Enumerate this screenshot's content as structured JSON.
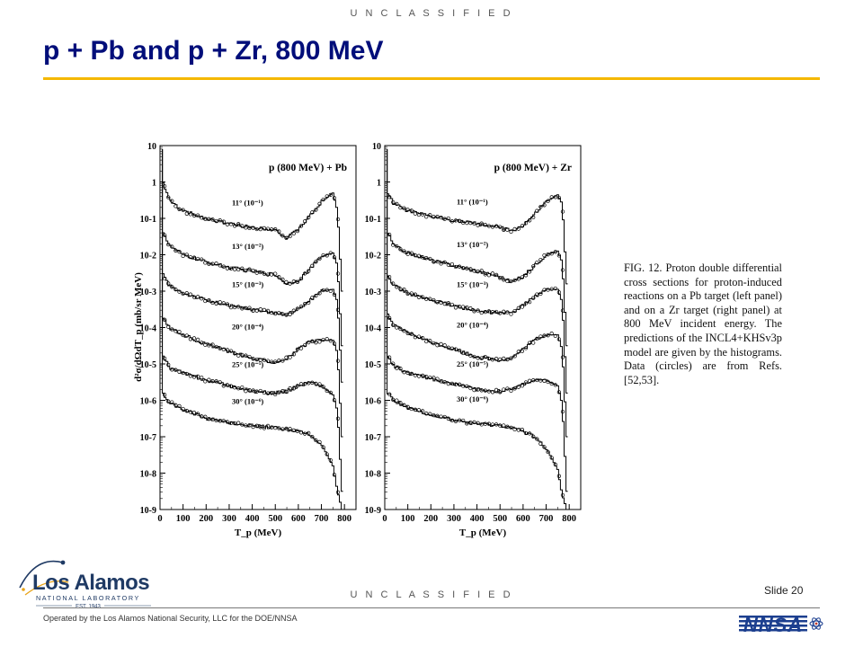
{
  "banner": "U N C L A S S I F I E D",
  "title": "p + Pb and p + Zr, 800 MeV",
  "caption": "FIG. 12. Proton double differential cross sections for proton-induced reactions on a Pb target (left panel) and on a Zr target (right panel) at 800 MeV incident energy. The predictions of the INCL4+KHSv3p model are given by the histograms. Data (circles) are from Refs. [52,53].",
  "slide": "Slide 20",
  "operated_by": "Operated by the Los Alamos National Security, LLC for the DOE/NNSA",
  "logo": {
    "name": "Los Alamos",
    "sub": "NATIONAL LABORATORY",
    "est": "EST. 1943"
  },
  "nnsa_logo": "NNSA",
  "colors": {
    "title": "#000e7a",
    "rule": "#f5b800",
    "logo": "#1f3a64"
  },
  "chart_data": [
    {
      "type": "line",
      "title": "p (800 MeV) + Pb",
      "xlabel": "T_p (MeV)",
      "ylabel": "d²σ/dΩdT_p (mb/sr MeV)",
      "xlim": [
        0,
        850
      ],
      "ylim_log10": [
        -9,
        1
      ],
      "x_ticks": [
        "0",
        "100",
        "200",
        "300",
        "400",
        "500",
        "600",
        "700",
        "800"
      ],
      "y_ticks": [
        "10",
        "1",
        "10-1",
        "10-2",
        "10-3",
        "10-4",
        "10-5",
        "10-6",
        "10-7",
        "10-8",
        "10-9"
      ],
      "series": [
        {
          "name": "11° (10⁻¹)",
          "x": [
            10,
            40,
            100,
            200,
            300,
            400,
            500,
            550,
            600,
            650,
            700,
            750,
            770,
            790
          ],
          "log_y": [
            0.05,
            -0.5,
            -0.8,
            -1.0,
            -1.15,
            -1.25,
            -1.3,
            -1.55,
            -1.3,
            -0.95,
            -0.55,
            -0.3,
            -0.8,
            -3.0
          ]
        },
        {
          "name": "13° (10⁻²)",
          "x": [
            10,
            40,
            100,
            200,
            300,
            400,
            500,
            550,
            600,
            650,
            700,
            750,
            770,
            790
          ],
          "log_y": [
            -1.3,
            -1.75,
            -2.0,
            -2.2,
            -2.35,
            -2.45,
            -2.55,
            -2.8,
            -2.7,
            -2.4,
            -2.05,
            -1.95,
            -2.3,
            -4.5
          ]
        },
        {
          "name": "15° (10⁻³)",
          "x": [
            10,
            40,
            100,
            200,
            300,
            400,
            500,
            550,
            600,
            650,
            700,
            750,
            770,
            790
          ],
          "log_y": [
            -2.5,
            -2.85,
            -3.05,
            -3.25,
            -3.4,
            -3.5,
            -3.6,
            -3.65,
            -3.5,
            -3.25,
            -3.0,
            -2.95,
            -3.3,
            -5.5
          ]
        },
        {
          "name": "20° (10⁻⁴)",
          "x": [
            10,
            40,
            100,
            200,
            300,
            400,
            500,
            550,
            600,
            650,
            700,
            750,
            770,
            790
          ],
          "log_y": [
            -3.7,
            -4.0,
            -4.2,
            -4.45,
            -4.65,
            -4.85,
            -4.95,
            -4.85,
            -4.6,
            -4.4,
            -4.35,
            -4.35,
            -4.7,
            -7.0
          ]
        },
        {
          "name": "25° (10⁻⁵)",
          "x": [
            10,
            40,
            100,
            200,
            300,
            400,
            500,
            550,
            600,
            650,
            700,
            750,
            770,
            790
          ],
          "log_y": [
            -4.7,
            -5.1,
            -5.25,
            -5.45,
            -5.6,
            -5.75,
            -5.8,
            -5.75,
            -5.6,
            -5.5,
            -5.6,
            -5.85,
            -6.3,
            -8.5
          ]
        },
        {
          "name": "30° (10⁻⁶)",
          "x": [
            10,
            40,
            100,
            200,
            300,
            400,
            500,
            550,
            600,
            650,
            700,
            750,
            770,
            790
          ],
          "log_y": [
            -5.8,
            -6.05,
            -6.25,
            -6.5,
            -6.6,
            -6.7,
            -6.75,
            -6.8,
            -6.85,
            -6.95,
            -7.2,
            -7.8,
            -8.5,
            -9.0
          ]
        }
      ]
    },
    {
      "type": "line",
      "title": "p (800 MeV) + Zr",
      "xlabel": "T_p (MeV)",
      "ylabel": "",
      "xlim": [
        0,
        850
      ],
      "ylim_log10": [
        -9,
        1
      ],
      "x_ticks": [
        "0",
        "100",
        "200",
        "300",
        "400",
        "500",
        "600",
        "700",
        "800"
      ],
      "y_ticks": [
        "10",
        "1",
        "10-1",
        "10-2",
        "10-3",
        "10-4",
        "10-5",
        "10-6",
        "10-7",
        "10-8",
        "10-9"
      ],
      "series": [
        {
          "name": "11° (10⁻¹)",
          "x": [
            10,
            40,
            100,
            200,
            300,
            400,
            500,
            550,
            600,
            650,
            700,
            750,
            770,
            790
          ],
          "log_y": [
            -0.3,
            -0.6,
            -0.8,
            -0.95,
            -1.05,
            -1.15,
            -1.25,
            -1.35,
            -1.2,
            -0.9,
            -0.55,
            -0.35,
            -0.6,
            -2.8
          ]
        },
        {
          "name": "13° (10⁻²)",
          "x": [
            10,
            40,
            100,
            200,
            300,
            400,
            500,
            550,
            600,
            650,
            700,
            750,
            770,
            790
          ],
          "log_y": [
            -1.35,
            -1.75,
            -1.95,
            -2.15,
            -2.3,
            -2.45,
            -2.6,
            -2.75,
            -2.6,
            -2.3,
            -2.0,
            -1.9,
            -2.2,
            -4.5
          ]
        },
        {
          "name": "15° (10⁻³)",
          "x": [
            10,
            40,
            100,
            200,
            300,
            400,
            500,
            550,
            600,
            650,
            700,
            750,
            770,
            790
          ],
          "log_y": [
            -2.5,
            -2.85,
            -3.05,
            -3.25,
            -3.4,
            -3.55,
            -3.6,
            -3.6,
            -3.4,
            -3.15,
            -2.95,
            -2.95,
            -3.3,
            -5.8
          ]
        },
        {
          "name": "20° (10⁻⁴)",
          "x": [
            10,
            40,
            100,
            200,
            300,
            400,
            500,
            550,
            600,
            650,
            700,
            750,
            770,
            790
          ],
          "log_y": [
            -3.6,
            -3.95,
            -4.15,
            -4.4,
            -4.6,
            -4.8,
            -4.9,
            -4.85,
            -4.6,
            -4.35,
            -4.2,
            -4.2,
            -4.6,
            -7.0
          ]
        },
        {
          "name": "25° (10⁻⁵)",
          "x": [
            10,
            40,
            100,
            200,
            300,
            400,
            500,
            550,
            600,
            650,
            700,
            750,
            770,
            790
          ],
          "log_y": [
            -4.75,
            -5.05,
            -5.25,
            -5.4,
            -5.55,
            -5.7,
            -5.75,
            -5.7,
            -5.55,
            -5.45,
            -5.45,
            -5.6,
            -6.1,
            -8.5
          ]
        },
        {
          "name": "30° (10⁻⁶)",
          "x": [
            10,
            40,
            100,
            200,
            300,
            400,
            500,
            550,
            600,
            650,
            700,
            750,
            770,
            790
          ],
          "log_y": [
            -5.75,
            -6.0,
            -6.2,
            -6.4,
            -6.55,
            -6.65,
            -6.7,
            -6.75,
            -6.85,
            -7.0,
            -7.3,
            -7.9,
            -8.6,
            -9.0
          ]
        }
      ]
    }
  ]
}
